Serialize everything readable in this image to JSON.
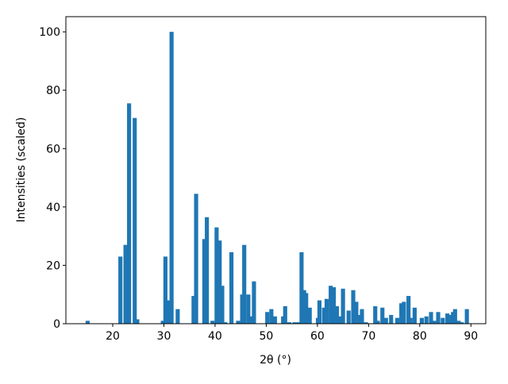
{
  "chart_data": {
    "type": "bar",
    "xlabel": "2θ (°)",
    "ylabel": "Intensities (scaled)",
    "color": "#1f77b4",
    "x": [
      15.1,
      21.5,
      22.5,
      23.2,
      24.3,
      24.8,
      29.8,
      30.3,
      30.8,
      31.5,
      32.7,
      35.8,
      36.3,
      37.9,
      38.4,
      39.5,
      40.3,
      40.9,
      41.4,
      42.0,
      43.2,
      44.5,
      45.3,
      45.7,
      46.5,
      47.2,
      47.6,
      50.2,
      51.0,
      51.7,
      53.3,
      53.7,
      54.5,
      55.5,
      56.3,
      56.9,
      57.4,
      57.8,
      58.5,
      60.1,
      60.4,
      61.3,
      61.8,
      62.6,
      63.2,
      63.8,
      64.3,
      65.0,
      66.1,
      67.0,
      67.6,
      68.0,
      68.7,
      69.5,
      71.3,
      71.8,
      72.7,
      73.4,
      74.4,
      75.6,
      76.4,
      76.9,
      77.8,
      78.2,
      79.0,
      80.4,
      81.3,
      82.2,
      82.8,
      83.6,
      84.5,
      85.4,
      85.8,
      86.5,
      86.9,
      87.6,
      88.2,
      89.2
    ],
    "values": [
      1,
      23,
      27,
      75.5,
      70.5,
      1.5,
      1,
      23,
      8,
      100,
      5,
      9.5,
      44.5,
      29,
      36.5,
      1,
      33,
      28.5,
      13,
      0.5,
      24.5,
      1,
      10,
      27,
      10,
      2.5,
      14.5,
      4,
      5,
      2.5,
      2.5,
      6,
      0.5,
      0.5,
      0.5,
      24.5,
      11.5,
      10.5,
      5.5,
      2,
      8,
      5.5,
      8.5,
      13,
      12.5,
      6,
      2.5,
      12,
      4.5,
      11.5,
      7.5,
      3,
      5,
      0.5,
      6,
      1,
      5.5,
      2,
      3,
      2,
      7,
      7.5,
      9.5,
      2,
      5.5,
      2,
      2.5,
      4,
      1,
      4,
      2,
      3.5,
      3,
      4,
      5,
      1,
      0.5,
      5
    ],
    "xlim": [
      10.85,
      92.9
    ],
    "xticks": [
      20,
      30,
      40,
      50,
      60,
      70,
      80,
      90
    ],
    "ylim": [
      0,
      105.2
    ],
    "yticks": [
      0,
      20,
      40,
      60,
      80,
      100
    ]
  }
}
